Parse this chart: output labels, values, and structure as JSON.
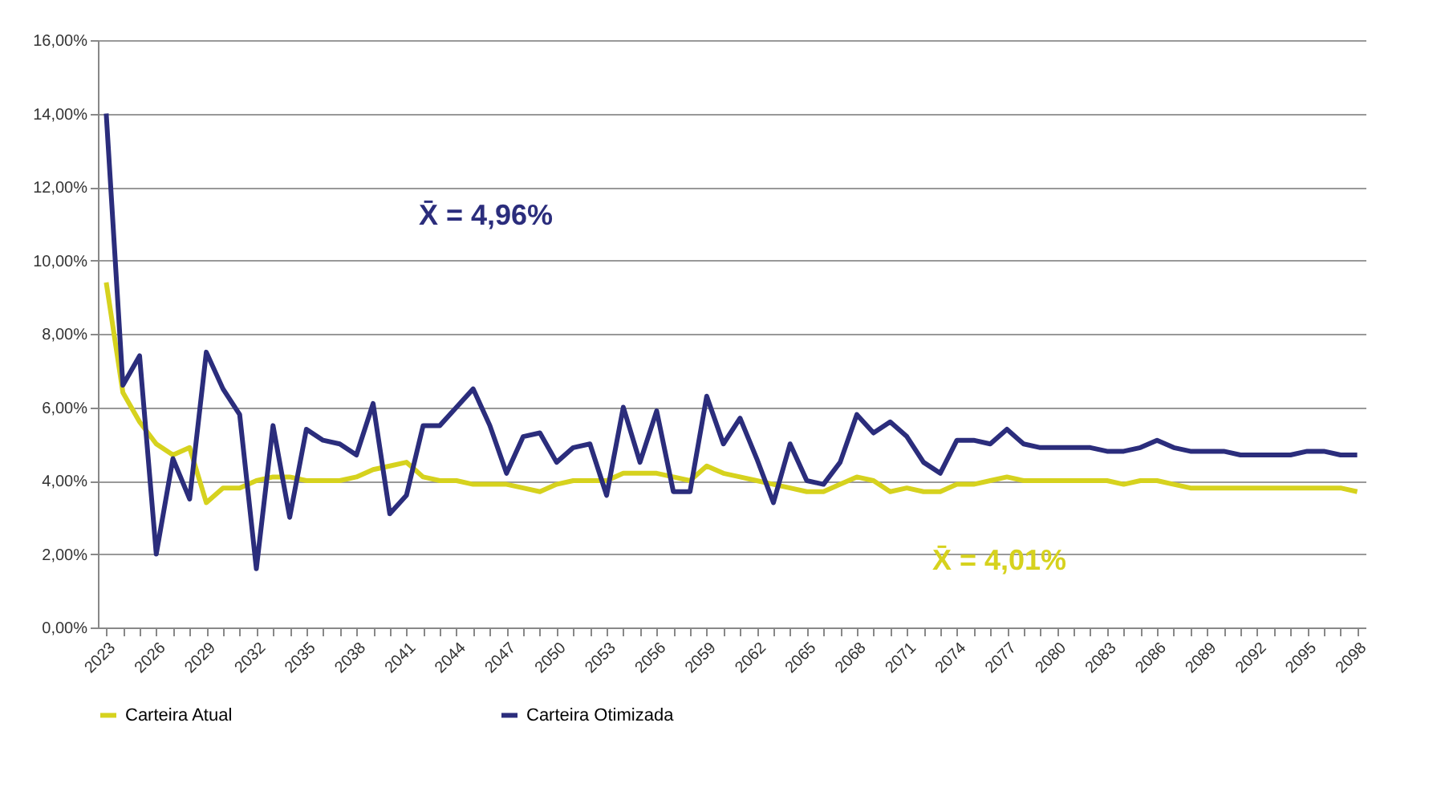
{
  "chart_data": {
    "type": "line",
    "categories": [
      "2023",
      null,
      null,
      "2026",
      null,
      null,
      "2029",
      null,
      null,
      "2032",
      null,
      null,
      "2035",
      null,
      null,
      "2038",
      null,
      null,
      "2041",
      null,
      null,
      "2044",
      null,
      null,
      "2047",
      null,
      null,
      "2050",
      null,
      null,
      "2053",
      null,
      null,
      "2056",
      null,
      null,
      "2059",
      null,
      null,
      "2062",
      null,
      null,
      "2065",
      null,
      null,
      "2068",
      null,
      null,
      "2071",
      null,
      null,
      "2074",
      null,
      null,
      "2077",
      null,
      null,
      "2080",
      null,
      null,
      "2083",
      null,
      null,
      "2086",
      null,
      null,
      "2089",
      null,
      null,
      "2092",
      null,
      null,
      "2095",
      null,
      null,
      "2098"
    ],
    "series": [
      {
        "name": "Carteira Atual",
        "color": "#d6d21e",
        "values": [
          9.4,
          6.4,
          5.6,
          5.0,
          4.7,
          4.9,
          3.4,
          3.8,
          3.8,
          4.0,
          4.1,
          4.1,
          4.0,
          4.0,
          4.0,
          4.1,
          4.3,
          4.4,
          4.5,
          4.1,
          4.0,
          4.0,
          3.9,
          3.9,
          3.9,
          3.8,
          3.7,
          3.9,
          4.0,
          4.0,
          4.0,
          4.2,
          4.2,
          4.2,
          4.1,
          4.0,
          4.4,
          4.2,
          4.1,
          4.0,
          3.9,
          3.8,
          3.7,
          3.7,
          3.9,
          4.1,
          4.0,
          3.7,
          3.8,
          3.7,
          3.7,
          3.9,
          3.9,
          4.0,
          4.1,
          4.0,
          4.0,
          4.0,
          4.0,
          4.0,
          4.0,
          3.9,
          4.0,
          4.0,
          3.9,
          3.8,
          3.8,
          3.8,
          3.8,
          3.8,
          3.8,
          3.8,
          3.8,
          3.8,
          3.8,
          3.7
        ]
      },
      {
        "name": "Carteira Otimizada",
        "color": "#2b2d7c",
        "values": [
          14.0,
          6.6,
          7.4,
          2.0,
          4.6,
          3.5,
          7.5,
          6.5,
          5.8,
          1.6,
          5.5,
          3.0,
          5.4,
          5.1,
          5.0,
          4.7,
          6.1,
          3.1,
          3.6,
          5.5,
          5.5,
          6.0,
          6.5,
          5.5,
          4.2,
          5.2,
          5.3,
          4.5,
          4.9,
          5.0,
          3.6,
          6.0,
          4.5,
          5.9,
          3.7,
          3.7,
          6.3,
          5.0,
          5.7,
          4.6,
          3.4,
          5.0,
          4.0,
          3.9,
          4.5,
          5.8,
          5.3,
          5.6,
          5.2,
          4.5,
          4.2,
          5.1,
          5.1,
          5.0,
          5.4,
          5.0,
          4.9,
          4.9,
          4.9,
          4.9,
          4.8,
          4.8,
          4.9,
          5.1,
          4.9,
          4.8,
          4.8,
          4.8,
          4.7,
          4.7,
          4.7,
          4.7,
          4.8,
          4.8,
          4.7,
          4.7
        ]
      }
    ],
    "ylim": [
      0,
      16
    ],
    "yticks": [
      {
        "value": 0,
        "label": "0,00%"
      },
      {
        "value": 2,
        "label": "2,00%"
      },
      {
        "value": 4,
        "label": "4,00%"
      },
      {
        "value": 6,
        "label": "6,00%"
      },
      {
        "value": 8,
        "label": "8,00%"
      },
      {
        "value": 10,
        "label": "10,00%"
      },
      {
        "value": 12,
        "label": "12,00%"
      },
      {
        "value": 14,
        "label": "14,00%"
      },
      {
        "value": 16,
        "label": "16,00%"
      }
    ],
    "grid": "y",
    "legend": "bottom",
    "marker": "none",
    "line_style": "solid",
    "annotations": [
      "X̄ = 4,96%",
      "X̄ = 4,01%"
    ]
  }
}
